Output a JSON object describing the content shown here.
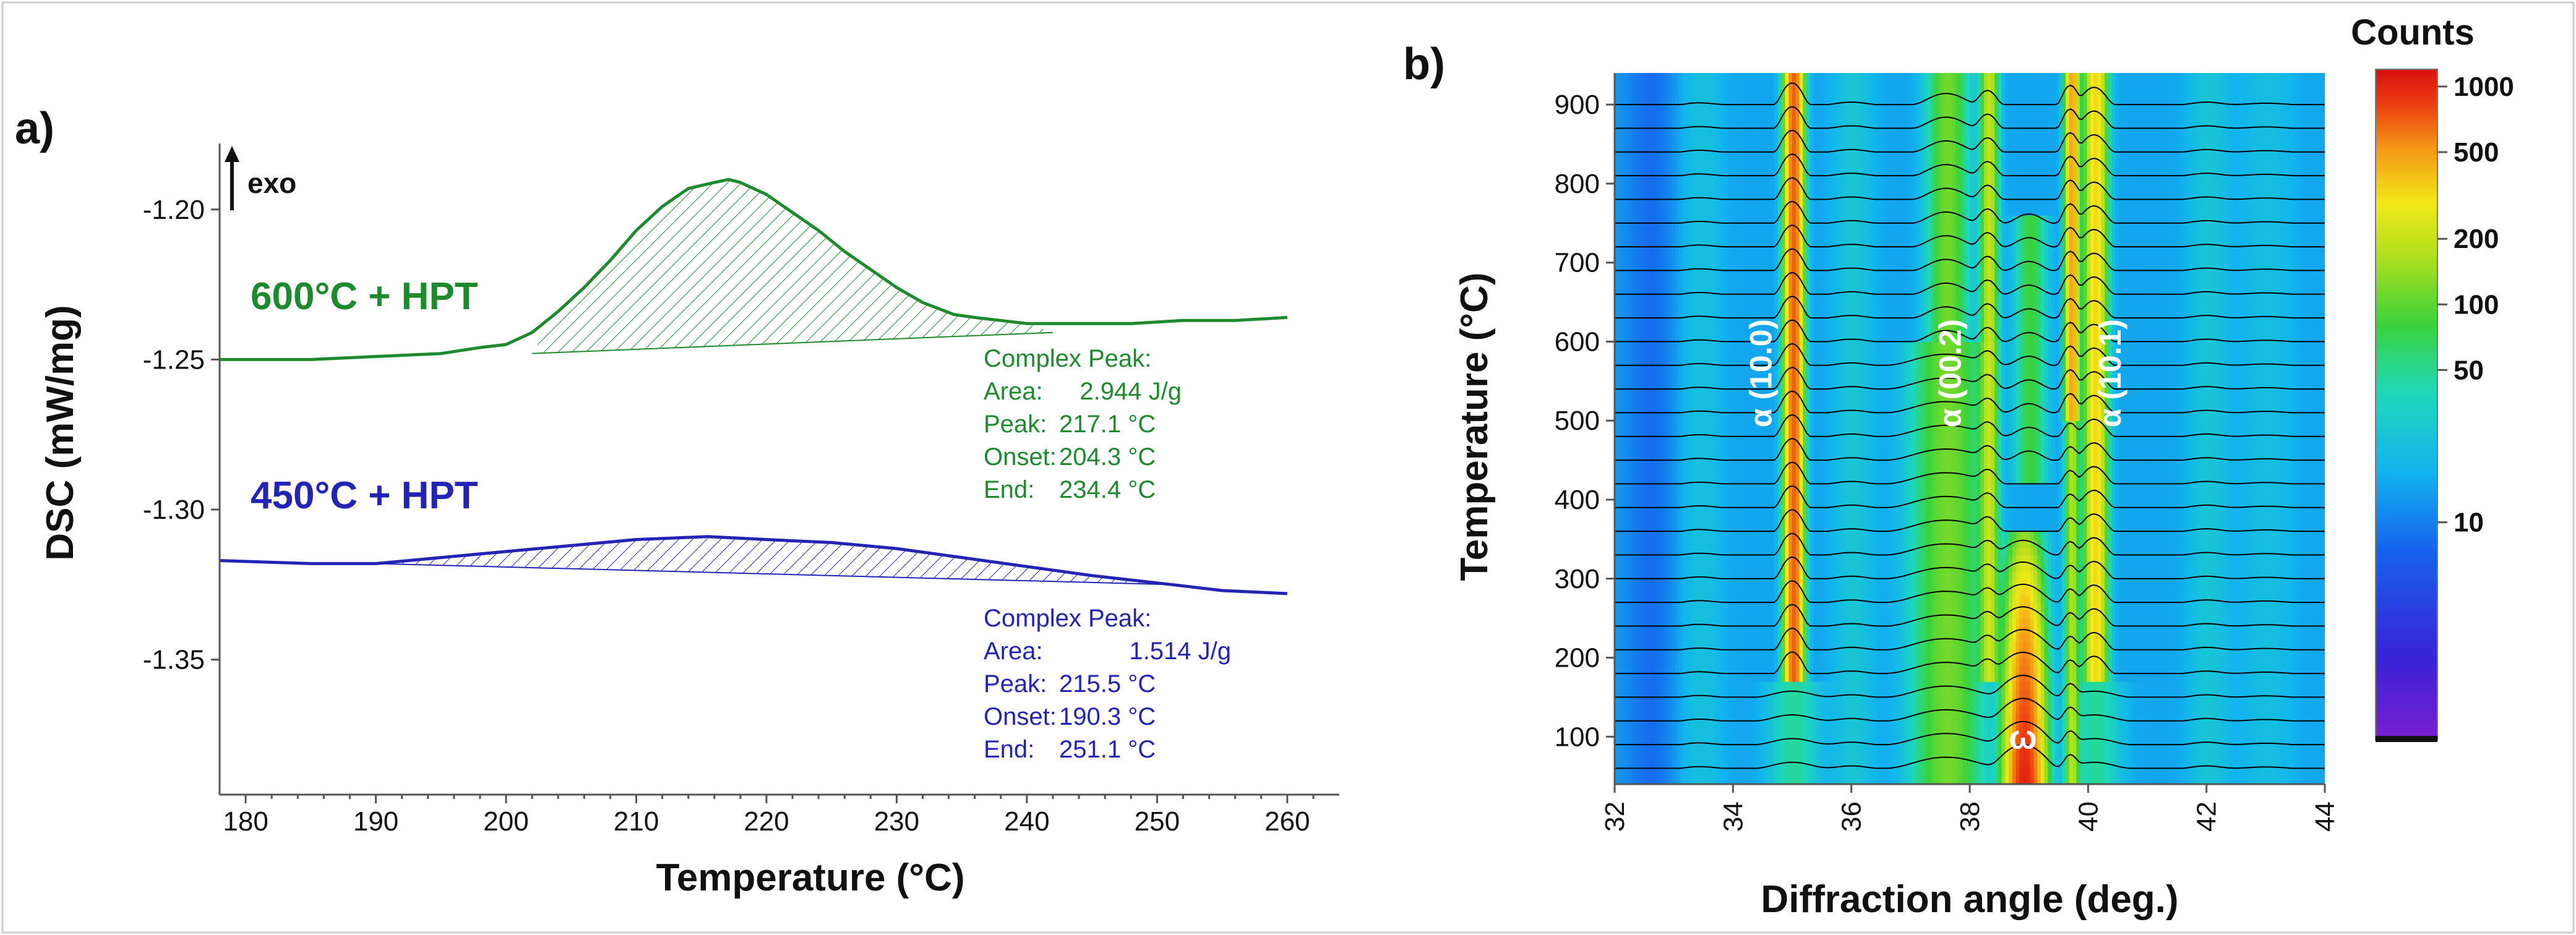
{
  "chart_data": [
    {
      "panel": "a)",
      "type": "line",
      "xlabel": "Temperature (°C)",
      "ylabel": "DSC (mW/mg)",
      "xlim": [
        178,
        264
      ],
      "ylim": [
        -1.395,
        -1.178
      ],
      "xticks": [
        180,
        190,
        200,
        210,
        220,
        230,
        240,
        250,
        260
      ],
      "xtick_labels": [
        "180",
        "190",
        "200",
        "210",
        "220",
        "230",
        "240",
        "250",
        "260"
      ],
      "yticks": [
        -1.2,
        -1.25,
        -1.3,
        -1.35
      ],
      "ytick_labels": [
        "-1.20",
        "-1.25",
        "-1.30",
        "-1.35"
      ],
      "direction_marker": "exo",
      "series": [
        {
          "name": "600°C + HPT",
          "color": "#1e8a2e",
          "x": [
            178,
            185,
            190,
            195,
            198,
            200,
            202,
            204,
            206,
            208,
            210,
            212,
            214,
            215,
            216,
            217.1,
            218,
            220,
            222,
            224,
            226,
            228,
            230,
            232,
            234.4,
            236,
            238,
            240,
            244,
            248,
            252,
            256,
            260
          ],
          "y": [
            -1.25,
            -1.25,
            -1.249,
            -1.248,
            -1.246,
            -1.245,
            -1.241,
            -1.234,
            -1.226,
            -1.217,
            -1.207,
            -1.199,
            -1.193,
            -1.192,
            -1.191,
            -1.19,
            -1.191,
            -1.195,
            -1.201,
            -1.207,
            -1.214,
            -1.22,
            -1.226,
            -1.231,
            -1.235,
            -1.236,
            -1.237,
            -1.238,
            -1.238,
            -1.238,
            -1.237,
            -1.237,
            -1.236
          ],
          "baseline": {
            "x": [
              202,
              242
            ],
            "y": [
              -1.248,
              -1.241
            ]
          },
          "annotation": {
            "title": "Complex Peak:",
            "area_label": "Area:",
            "area": "2.944 J/g",
            "peak_label": "Peak:",
            "peak": "217.1 °C",
            "onset_label": "Onset:",
            "onset": "204.3 °C",
            "end_label": "End:",
            "end": "234.4 °C"
          }
        },
        {
          "name": "450°C + HPT",
          "color": "#2323b5",
          "x": [
            178,
            185,
            190,
            195,
            200,
            205,
            210,
            215.5,
            220,
            225,
            230,
            235,
            240,
            245,
            251.1,
            255,
            260
          ],
          "y": [
            -1.317,
            -1.318,
            -1.318,
            -1.316,
            -1.314,
            -1.312,
            -1.31,
            -1.309,
            -1.31,
            -1.311,
            -1.313,
            -1.316,
            -1.319,
            -1.322,
            -1.325,
            -1.327,
            -1.328
          ],
          "baseline": {
            "x": [
              190,
              251.1
            ],
            "y": [
              -1.318,
              -1.325
            ]
          },
          "annotation": {
            "title": "Complex Peak:",
            "area_label": "Area:",
            "area": "1.514 J/g",
            "peak_label": "Peak:",
            "peak": "215.5 °C",
            "onset_label": "Onset:",
            "onset": "190.3 °C",
            "end_label": "End:",
            "end": "251.1 °C"
          }
        }
      ]
    },
    {
      "panel": "b)",
      "type": "heatmap",
      "xlabel": "Diffraction angle (deg.)",
      "ylabel": "Temperature (°C)",
      "xlim": [
        32,
        44
      ],
      "ylim": [
        40,
        940
      ],
      "xticks": [
        32,
        34,
        36,
        38,
        40,
        42,
        44
      ],
      "xtick_labels": [
        "32",
        "34",
        "36",
        "38",
        "40",
        "42",
        "44"
      ],
      "yticks": [
        100,
        200,
        300,
        400,
        500,
        600,
        700,
        800,
        900
      ],
      "ytick_labels": [
        "100",
        "200",
        "300",
        "400",
        "500",
        "600",
        "700",
        "800",
        "900"
      ],
      "colorbar": {
        "title": "Counts",
        "ticks": [
          10,
          50,
          100,
          200,
          500,
          1000
        ],
        "tick_labels": [
          "10",
          "50",
          "100",
          "200",
          "500",
          "1000"
        ]
      },
      "peaks": [
        {
          "label": "α (10.0)",
          "angle": 35.0
        },
        {
          "label": "α (00.2)",
          "angle": 38.3
        },
        {
          "label": "α (10.1)",
          "angle": 40.1
        },
        {
          "label": "ω",
          "angle": 38.9
        }
      ],
      "scan_temperatures_step": 30
    }
  ]
}
